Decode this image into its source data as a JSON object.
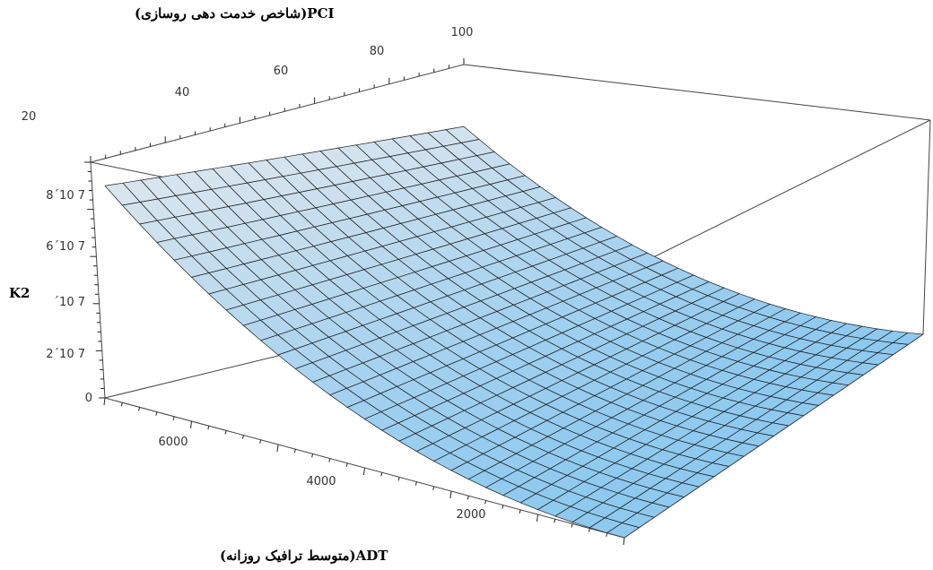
{
  "chart_data": {
    "type": "surface3d",
    "title": "",
    "xlabel": "(متوسط ترافیک روزانه)ADT",
    "ylabel": "(شاخص خدمت دهی روسازی)PCI",
    "zlabel": "K2",
    "x_ticks": [
      "2000",
      "4000",
      "6000"
    ],
    "y_ticks": [
      "20",
      "40",
      "60",
      "80",
      "100"
    ],
    "z_ticks": [
      "0",
      "2´10 7",
      "´10 7",
      "6´10 7",
      "8´10 7"
    ],
    "xlim": [
      0,
      7500
    ],
    "ylim": [
      0,
      100
    ],
    "zlim": [
      0,
      100000000
    ],
    "grid_resolution": [
      20,
      30
    ],
    "corner_values": [
      {
        "ADT": 7500,
        "PCI": 0,
        "K2": 90000000
      },
      {
        "ADT": 7500,
        "PCI": 100,
        "K2": 85000000
      },
      {
        "ADT": 0,
        "PCI": 0,
        "K2": 0
      },
      {
        "ADT": 0,
        "PCI": 100,
        "K2": 0
      }
    ],
    "colors": {
      "surface_low": "#8ec9ef",
      "surface_high": "#dce6ee",
      "mesh": "#1a1a1a",
      "box": "#444444"
    }
  }
}
